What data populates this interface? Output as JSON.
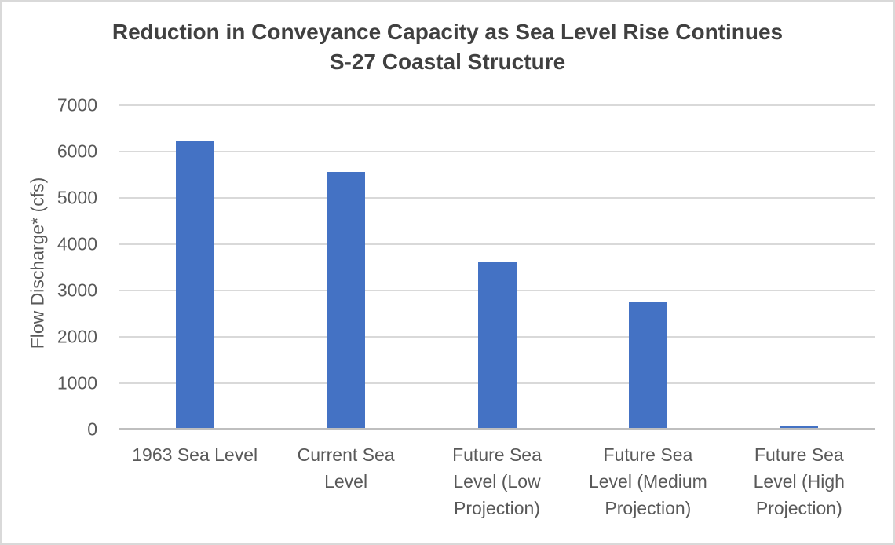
{
  "window": {
    "background": "#FFFFFF",
    "border_color": "#D9D9D9"
  },
  "chart_data": {
    "type": "bar",
    "title": "Reduction in Conveyance Capacity as Sea Level Rise Continues",
    "subtitle": "S-27 Coastal Structure",
    "ylabel": "Flow Discharge* (cfs)",
    "xlabel": "",
    "categories": [
      "1963 Sea Level",
      "Current Sea Level",
      "Future Sea Level (Low Projection)",
      "Future Sea Level (Medium Projection)",
      "Future Sea Level (High Projection)"
    ],
    "categories_wrapped": [
      "1963 Sea Level",
      "Current Sea\nLevel",
      "Future Sea\nLevel (Low\nProjection)",
      "Future Sea\nLevel (Medium\nProjection)",
      "Future Sea\nLevel (High\nProjection)"
    ],
    "values": [
      6180,
      5530,
      3590,
      2710,
      50
    ],
    "ylim": [
      0,
      7000
    ],
    "yticks": [
      0,
      1000,
      2000,
      3000,
      4000,
      5000,
      6000,
      7000
    ],
    "ytick_interval": 1000,
    "grid": "horizontal",
    "legend": "none",
    "bar_color": "#4472C4",
    "gridline_color": "#D9D9D9",
    "axis_line_color": "#BFBFBF",
    "title_color": "#404040",
    "axis_text_color": "#595959"
  }
}
